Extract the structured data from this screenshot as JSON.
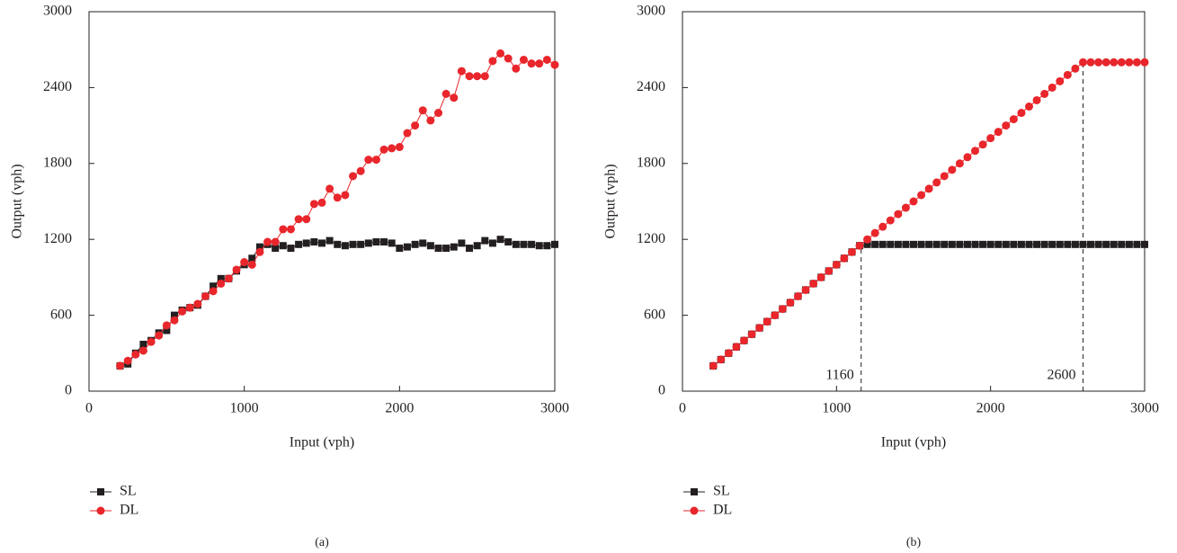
{
  "chart_data": [
    {
      "type": "line",
      "label": "(a)",
      "x_label": "Input (vph)",
      "y_label": "Output (vph)",
      "xlim": [
        0,
        3000
      ],
      "xticks": [
        0,
        1000,
        2000,
        3000
      ],
      "ylim": [
        0,
        3000
      ],
      "yticks": [
        0,
        600,
        1200,
        1800,
        2400,
        3000
      ],
      "x": [
        200,
        250,
        300,
        350,
        400,
        450,
        500,
        550,
        600,
        650,
        700,
        750,
        800,
        850,
        900,
        950,
        1000,
        1050,
        1100,
        1150,
        1200,
        1250,
        1300,
        1350,
        1400,
        1450,
        1500,
        1550,
        1600,
        1650,
        1700,
        1750,
        1800,
        1850,
        1900,
        1950,
        2000,
        2050,
        2100,
        2150,
        2200,
        2250,
        2300,
        2350,
        2400,
        2450,
        2500,
        2550,
        2600,
        2650,
        2700,
        2750,
        2800,
        2850,
        2900,
        2950,
        3000
      ],
      "series": [
        {
          "name": "SL",
          "color": "#231f20",
          "marker": "square",
          "values": [
            200,
            215,
            300,
            370,
            400,
            460,
            480,
            600,
            640,
            660,
            680,
            750,
            830,
            890,
            890,
            950,
            1000,
            1050,
            1140,
            1160,
            1130,
            1150,
            1130,
            1160,
            1170,
            1180,
            1170,
            1190,
            1160,
            1150,
            1160,
            1160,
            1170,
            1180,
            1180,
            1170,
            1130,
            1140,
            1160,
            1170,
            1150,
            1130,
            1130,
            1140,
            1170,
            1130,
            1150,
            1190,
            1170,
            1200,
            1180,
            1160,
            1160,
            1160,
            1150,
            1150,
            1160
          ]
        },
        {
          "name": "DL",
          "color": "#e8262b",
          "marker": "circle",
          "values": [
            200,
            240,
            290,
            320,
            390,
            440,
            520,
            560,
            630,
            660,
            690,
            750,
            790,
            850,
            890,
            960,
            1020,
            1000,
            1100,
            1180,
            1180,
            1280,
            1280,
            1360,
            1360,
            1480,
            1490,
            1600,
            1530,
            1550,
            1700,
            1740,
            1830,
            1830,
            1910,
            1920,
            1930,
            2040,
            2100,
            2220,
            2140,
            2200,
            2350,
            2320,
            2530,
            2490,
            2490,
            2490,
            2610,
            2670,
            2630,
            2550,
            2620,
            2590,
            2590,
            2620,
            2580
          ]
        }
      ]
    },
    {
      "type": "line",
      "label": "(b)",
      "x_label": "Input (vph)",
      "y_label": "Output (vph)",
      "xlim": [
        0,
        3000
      ],
      "xticks": [
        0,
        1000,
        2000,
        3000
      ],
      "ylim": [
        0,
        3000
      ],
      "yticks": [
        0,
        600,
        1200,
        1800,
        2400,
        3000
      ],
      "x": [
        200,
        250,
        300,
        350,
        400,
        450,
        500,
        550,
        600,
        650,
        700,
        750,
        800,
        850,
        900,
        950,
        1000,
        1050,
        1100,
        1150,
        1200,
        1250,
        1300,
        1350,
        1400,
        1450,
        1500,
        1550,
        1600,
        1650,
        1700,
        1750,
        1800,
        1850,
        1900,
        1950,
        2000,
        2050,
        2100,
        2150,
        2200,
        2250,
        2300,
        2350,
        2400,
        2450,
        2500,
        2550,
        2600,
        2650,
        2700,
        2750,
        2800,
        2850,
        2900,
        2950,
        3000
      ],
      "series": [
        {
          "name": "SL",
          "color": "#231f20",
          "marker": "square",
          "values": [
            200,
            250,
            300,
            350,
            400,
            450,
            500,
            550,
            600,
            650,
            700,
            750,
            800,
            850,
            900,
            950,
            1000,
            1050,
            1100,
            1150,
            1160,
            1160,
            1160,
            1160,
            1160,
            1160,
            1160,
            1160,
            1160,
            1160,
            1160,
            1160,
            1160,
            1160,
            1160,
            1160,
            1160,
            1160,
            1160,
            1160,
            1160,
            1160,
            1160,
            1160,
            1160,
            1160,
            1160,
            1160,
            1160,
            1160,
            1160,
            1160,
            1160,
            1160,
            1160,
            1160,
            1160
          ]
        },
        {
          "name": "DL",
          "color": "#e8262b",
          "marker": "circle",
          "values": [
            200,
            250,
            300,
            350,
            400,
            450,
            500,
            550,
            600,
            650,
            700,
            750,
            800,
            850,
            900,
            950,
            1000,
            1050,
            1100,
            1150,
            1200,
            1250,
            1300,
            1350,
            1400,
            1450,
            1500,
            1550,
            1600,
            1650,
            1700,
            1750,
            1800,
            1850,
            1900,
            1950,
            2000,
            2050,
            2100,
            2150,
            2200,
            2250,
            2300,
            2350,
            2400,
            2450,
            2500,
            2550,
            2600,
            2600,
            2600,
            2600,
            2600,
            2600,
            2600,
            2600,
            2600
          ]
        }
      ],
      "vlines": [
        {
          "x": 1160,
          "y": 1160
        },
        {
          "x": 2600,
          "y": 2600
        }
      ]
    }
  ]
}
